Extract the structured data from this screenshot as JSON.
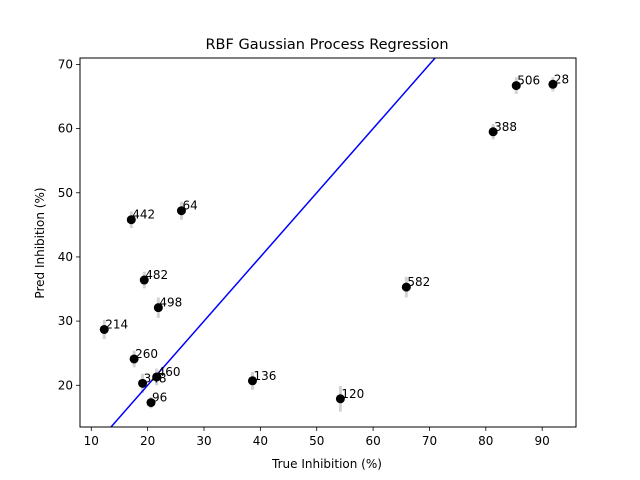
{
  "chart_data": {
    "type": "scatter",
    "title": "RBF Gaussian Process Regression",
    "xlabel": "True Inhibition (%)",
    "ylabel": "Pred Inhibition (%)",
    "xlim": [
      8,
      96
    ],
    "ylim": [
      13.5,
      71
    ],
    "xticks": [
      10,
      20,
      30,
      40,
      50,
      60,
      70,
      80,
      90
    ],
    "yticks": [
      20,
      30,
      40,
      50,
      60,
      70
    ],
    "grid": false,
    "point_color": "#000000",
    "errorbar_color": "#d3d3d3",
    "reference_line": {
      "description": "y = x",
      "color": "#0000ff"
    },
    "points": [
      {
        "id": "506",
        "x": 85.4,
        "y": 66.7,
        "err": 1.3
      },
      {
        "id": "28",
        "x": 91.9,
        "y": 66.9,
        "err": 1.1
      },
      {
        "id": "388",
        "x": 81.3,
        "y": 59.5,
        "err": 1.2
      },
      {
        "id": "64",
        "x": 26.0,
        "y": 47.2,
        "err": 1.4
      },
      {
        "id": "442",
        "x": 17.1,
        "y": 45.8,
        "err": 1.3
      },
      {
        "id": "482",
        "x": 19.4,
        "y": 36.4,
        "err": 1.3
      },
      {
        "id": "582",
        "x": 65.9,
        "y": 35.3,
        "err": 1.6
      },
      {
        "id": "498",
        "x": 21.9,
        "y": 32.1,
        "err": 1.6
      },
      {
        "id": "214",
        "x": 12.3,
        "y": 28.7,
        "err": 1.5
      },
      {
        "id": "260",
        "x": 17.6,
        "y": 24.1,
        "err": 1.3
      },
      {
        "id": "460",
        "x": 21.6,
        "y": 21.3,
        "err": 1.3
      },
      {
        "id": "348",
        "x": 19.1,
        "y": 20.3,
        "err": 1.5
      },
      {
        "id": "136",
        "x": 38.6,
        "y": 20.7,
        "err": 1.4
      },
      {
        "id": "96",
        "x": 20.6,
        "y": 17.3,
        "err": 0.9
      },
      {
        "id": "120",
        "x": 54.2,
        "y": 17.9,
        "err": 2.0
      }
    ]
  }
}
